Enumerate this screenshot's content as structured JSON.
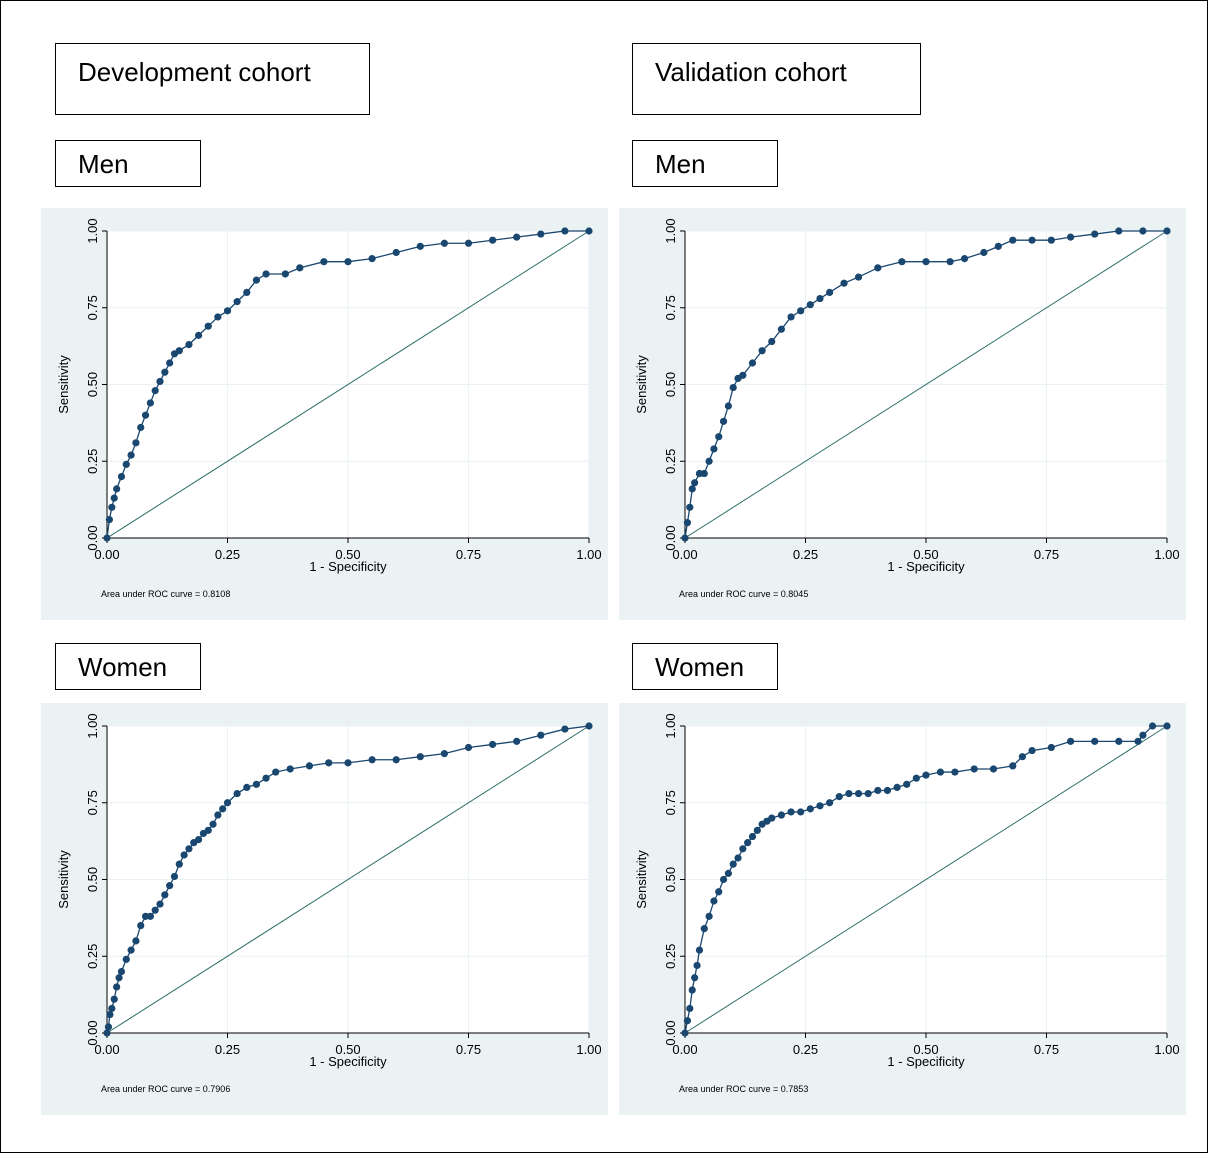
{
  "colors": {
    "panel_bg": "#eaf2f3",
    "plot_bg": "#ffffff",
    "grid": "#eaf2f3",
    "curve": "#1a476f",
    "reference": "#2d6d66",
    "axis": "#000000"
  },
  "headers": {
    "development": "Development cohort",
    "validation": "Validation cohort"
  },
  "group_labels": {
    "dev_men": "Men",
    "val_men": "Men",
    "dev_women": "Women",
    "val_women": "Women"
  },
  "chart_data": [
    {
      "id": "dev_men",
      "type": "line",
      "xlabel": "1 - Specificity",
      "ylabel": "Sensitivity",
      "xlim": [
        0,
        1
      ],
      "ylim": [
        0,
        1
      ],
      "xticks": [
        "0.00",
        "0.25",
        "0.50",
        "0.75",
        "1.00"
      ],
      "yticks": [
        "0.00",
        "0.25",
        "0.50",
        "0.75",
        "1.00"
      ],
      "grid": true,
      "auc_note": "Area under ROC curve = 0.8108",
      "series": [
        {
          "x": [
            0,
            0.005,
            0.01,
            0.015,
            0.02,
            0.03,
            0.04,
            0.05,
            0.06,
            0.07,
            0.08,
            0.09,
            0.1,
            0.11,
            0.12,
            0.13,
            0.14,
            0.15,
            0.17,
            0.19,
            0.21,
            0.23,
            0.25,
            0.27,
            0.29,
            0.31,
            0.33,
            0.37,
            0.4,
            0.45,
            0.5,
            0.55,
            0.6,
            0.65,
            0.7,
            0.75,
            0.8,
            0.85,
            0.9,
            0.95,
            1.0
          ],
          "y": [
            0,
            0.06,
            0.1,
            0.13,
            0.16,
            0.2,
            0.24,
            0.27,
            0.31,
            0.36,
            0.4,
            0.44,
            0.48,
            0.51,
            0.54,
            0.57,
            0.6,
            0.61,
            0.63,
            0.66,
            0.69,
            0.72,
            0.74,
            0.77,
            0.8,
            0.84,
            0.86,
            0.86,
            0.88,
            0.9,
            0.9,
            0.91,
            0.93,
            0.95,
            0.96,
            0.96,
            0.97,
            0.98,
            0.99,
            1.0,
            1.0
          ]
        },
        {
          "x": [
            0,
            1
          ],
          "y": [
            0,
            1
          ]
        }
      ]
    },
    {
      "id": "val_men",
      "type": "line",
      "xlabel": "1 - Specificity",
      "ylabel": "Sensitivity",
      "xlim": [
        0,
        1
      ],
      "ylim": [
        0,
        1
      ],
      "xticks": [
        "0.00",
        "0.25",
        "0.50",
        "0.75",
        "1.00"
      ],
      "yticks": [
        "0.00",
        "0.25",
        "0.50",
        "0.75",
        "1.00"
      ],
      "grid": true,
      "auc_note": "Area under ROC curve = 0.8045",
      "series": [
        {
          "x": [
            0,
            0.005,
            0.01,
            0.015,
            0.02,
            0.03,
            0.04,
            0.05,
            0.06,
            0.07,
            0.08,
            0.09,
            0.1,
            0.11,
            0.12,
            0.14,
            0.16,
            0.18,
            0.2,
            0.22,
            0.24,
            0.26,
            0.28,
            0.3,
            0.33,
            0.36,
            0.4,
            0.45,
            0.5,
            0.55,
            0.58,
            0.62,
            0.65,
            0.68,
            0.72,
            0.76,
            0.8,
            0.85,
            0.9,
            0.95,
            1.0
          ],
          "y": [
            0,
            0.05,
            0.1,
            0.16,
            0.18,
            0.21,
            0.21,
            0.25,
            0.29,
            0.33,
            0.38,
            0.43,
            0.49,
            0.52,
            0.53,
            0.57,
            0.61,
            0.64,
            0.68,
            0.72,
            0.74,
            0.76,
            0.78,
            0.8,
            0.83,
            0.85,
            0.88,
            0.9,
            0.9,
            0.9,
            0.91,
            0.93,
            0.95,
            0.97,
            0.97,
            0.97,
            0.98,
            0.99,
            1.0,
            1.0,
            1.0
          ]
        },
        {
          "x": [
            0,
            1
          ],
          "y": [
            0,
            1
          ]
        }
      ]
    },
    {
      "id": "dev_women",
      "type": "line",
      "xlabel": "1 - Specificity",
      "ylabel": "Sensitivity",
      "xlim": [
        0,
        1
      ],
      "ylim": [
        0,
        1
      ],
      "xticks": [
        "0.00",
        "0.25",
        "0.50",
        "0.75",
        "1.00"
      ],
      "yticks": [
        "0.00",
        "0.25",
        "0.50",
        "0.75",
        "1.00"
      ],
      "grid": true,
      "auc_note": "Area under ROC curve = 0.7906",
      "series": [
        {
          "x": [
            0,
            0.003,
            0.006,
            0.01,
            0.015,
            0.02,
            0.025,
            0.03,
            0.04,
            0.05,
            0.06,
            0.07,
            0.08,
            0.09,
            0.1,
            0.11,
            0.12,
            0.13,
            0.14,
            0.15,
            0.16,
            0.17,
            0.18,
            0.19,
            0.2,
            0.21,
            0.22,
            0.23,
            0.24,
            0.25,
            0.27,
            0.29,
            0.31,
            0.33,
            0.35,
            0.38,
            0.42,
            0.46,
            0.5,
            0.55,
            0.6,
            0.65,
            0.7,
            0.75,
            0.8,
            0.85,
            0.9,
            0.95,
            1.0
          ],
          "y": [
            0,
            0.02,
            0.06,
            0.08,
            0.11,
            0.15,
            0.18,
            0.2,
            0.24,
            0.27,
            0.3,
            0.35,
            0.38,
            0.38,
            0.4,
            0.42,
            0.45,
            0.48,
            0.51,
            0.55,
            0.58,
            0.6,
            0.62,
            0.63,
            0.65,
            0.66,
            0.68,
            0.71,
            0.73,
            0.75,
            0.78,
            0.8,
            0.81,
            0.83,
            0.85,
            0.86,
            0.87,
            0.88,
            0.88,
            0.89,
            0.89,
            0.9,
            0.91,
            0.93,
            0.94,
            0.95,
            0.97,
            0.99,
            1.0
          ]
        },
        {
          "x": [
            0,
            1
          ],
          "y": [
            0,
            1
          ]
        }
      ]
    },
    {
      "id": "val_women",
      "type": "line",
      "xlabel": "1 - Specificity",
      "ylabel": "Sensitivity",
      "xlim": [
        0,
        1
      ],
      "ylim": [
        0,
        1
      ],
      "xticks": [
        "0.00",
        "0.25",
        "0.50",
        "0.75",
        "1.00"
      ],
      "yticks": [
        "0.00",
        "0.25",
        "0.50",
        "0.75",
        "1.00"
      ],
      "grid": true,
      "auc_note": "Area under ROC curve = 0.7853",
      "series": [
        {
          "x": [
            0,
            0.005,
            0.01,
            0.015,
            0.02,
            0.025,
            0.03,
            0.04,
            0.05,
            0.06,
            0.07,
            0.08,
            0.09,
            0.1,
            0.11,
            0.12,
            0.13,
            0.14,
            0.15,
            0.16,
            0.17,
            0.18,
            0.2,
            0.22,
            0.24,
            0.26,
            0.28,
            0.3,
            0.32,
            0.34,
            0.36,
            0.38,
            0.4,
            0.42,
            0.44,
            0.46,
            0.48,
            0.5,
            0.53,
            0.56,
            0.6,
            0.64,
            0.68,
            0.7,
            0.72,
            0.76,
            0.8,
            0.85,
            0.9,
            0.94,
            0.95,
            0.97,
            1.0
          ],
          "y": [
            0,
            0.04,
            0.08,
            0.14,
            0.18,
            0.22,
            0.27,
            0.34,
            0.38,
            0.43,
            0.46,
            0.5,
            0.52,
            0.55,
            0.57,
            0.6,
            0.62,
            0.64,
            0.66,
            0.68,
            0.69,
            0.7,
            0.71,
            0.72,
            0.72,
            0.73,
            0.74,
            0.75,
            0.77,
            0.78,
            0.78,
            0.78,
            0.79,
            0.79,
            0.8,
            0.81,
            0.83,
            0.84,
            0.85,
            0.85,
            0.86,
            0.86,
            0.87,
            0.9,
            0.92,
            0.93,
            0.95,
            0.95,
            0.95,
            0.95,
            0.97,
            1.0,
            1.0
          ]
        },
        {
          "x": [
            0,
            1
          ],
          "y": [
            0,
            1
          ]
        }
      ]
    }
  ]
}
